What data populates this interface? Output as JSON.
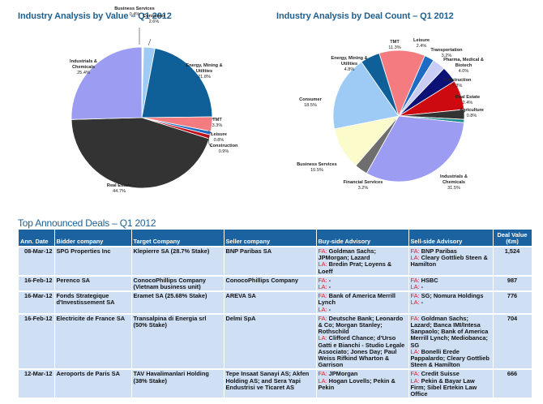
{
  "titles": {
    "value_chart": "Industry Analysis by Value – Q1 2012",
    "count_chart": "Industry Analysis by Deal Count – Q1 2012",
    "deals_table": "Top Announced Deals – Q1 2012"
  },
  "chart_data": [
    {
      "type": "pie",
      "title": "Industry Analysis by Value – Q1 2012",
      "slices": [
        {
          "label": "Business Services",
          "value": 0.4,
          "display": "0.4%",
          "color": "#ffffff"
        },
        {
          "label": "Consumer",
          "value": 2.6,
          "display": "2.6%",
          "color": "#9dcbf5"
        },
        {
          "label": "Energy, Mining & Utilities",
          "value": 21.8,
          "display": "21.8%",
          "color": "#0f5f99"
        },
        {
          "label": "TMT",
          "value": 3.3,
          "display": "3.3%",
          "color": "#f47c80"
        },
        {
          "label": "Leisure",
          "value": 0.8,
          "display": "0.8%",
          "color": "#1e6bc6"
        },
        {
          "label": "Construction",
          "value": 0.9,
          "display": "0.9%",
          "color": "#c0101a"
        },
        {
          "label": "Real Estate",
          "value": 44.7,
          "display": "44.7%",
          "color": "#333333"
        },
        {
          "label": "Industrials & Chemicals",
          "value": 25.4,
          "display": "25.4%",
          "color": "#9b9cf2"
        }
      ]
    },
    {
      "type": "pie",
      "title": "Industry Analysis by Deal Count – Q1 2012",
      "slices": [
        {
          "label": "Leisure",
          "value": 2.4,
          "display": "2.4%",
          "color": "#1e6bc6"
        },
        {
          "label": "Transportation",
          "value": 3.2,
          "display": "3.2%",
          "color": "#c9ccf4"
        },
        {
          "label": "Pharma, Medical & Biotech",
          "value": 4.0,
          "display": "4.0%",
          "color": "#0b1175"
        },
        {
          "label": "Construction",
          "value": 7.3,
          "display": "7.3%",
          "color": "#cc0a0f"
        },
        {
          "label": "Real Estate",
          "value": 2.4,
          "display": "2.4%",
          "color": "#333333"
        },
        {
          "label": "Agriculture",
          "value": 0.8,
          "display": "0.8%",
          "color": "#1a8a8a"
        },
        {
          "label": "Industrials & Chemicals",
          "value": 31.5,
          "display": "31.5%",
          "color": "#9b9cf2"
        },
        {
          "label": "Financial Services",
          "value": 3.2,
          "display": "3.2%",
          "color": "#6e6e6e"
        },
        {
          "label": "Business Services",
          "value": 10.5,
          "display": "10.5%",
          "color": "#fbfbcc"
        },
        {
          "label": "Consumer",
          "value": 18.5,
          "display": "18.5%",
          "color": "#9dcbf5"
        },
        {
          "label": "Energy, Mining & Utilities",
          "value": 4.8,
          "display": "4.8%",
          "color": "#0f5f99"
        },
        {
          "label": "TMT",
          "value": 11.3,
          "display": "11.3%",
          "color": "#f47c80"
        }
      ]
    }
  ],
  "table": {
    "headers": {
      "date": "Ann. Date",
      "bidder": "Bidder company",
      "target": "Target Company",
      "seller": "Seller company",
      "buy": "Buy-side Advisory",
      "sell": "Sell-side Advisory",
      "value": "Deal Value (€m)"
    },
    "fa_prefix": "FA:",
    "la_prefix": "LA:",
    "rows": [
      {
        "date": "08-Mar-12",
        "bidder": "SPG Properties Inc",
        "target": "Klepierre SA (28.7% Stake)",
        "seller": "BNP Paribas SA",
        "buy_fa": " Goldman Sachs; JPMorgan; Lazard",
        "buy_la": " Bredin Prat; Loyens & Loeff",
        "sell_fa": " BNP Paribas",
        "sell_la": " Cleary Gottlieb Steen & Hamilton",
        "value": "1,524"
      },
      {
        "date": "16-Feb-12",
        "bidder": "Perenco SA",
        "target": "ConocoPhillips Company (Vietnam business unit)",
        "seller": "ConocoPhillips Company",
        "buy_fa": " -",
        "buy_la": " -",
        "sell_fa": " HSBC",
        "sell_la": " -",
        "value": "987"
      },
      {
        "date": "16-Mar-12",
        "bidder": "Fonds Strategique d'Investissement SA",
        "target": "Eramet SA (25.68% Stake)",
        "seller": "AREVA SA",
        "buy_fa": " Bank of America Merrill Lynch",
        "buy_la": " -",
        "sell_fa": " SG; Nomura Holdings",
        "sell_la": " -",
        "value": "776"
      },
      {
        "date": "16-Feb-12",
        "bidder": "Electricite de France SA",
        "target": "Transalpina di Energia srl (50% Stake)",
        "seller": "Delmi SpA",
        "buy_fa": " Deutsche Bank; Leonardo & Co; Morgan Stanley; Rothschild",
        "buy_la": " Clifford Chance; d'Urso Gatti e Bianchi - Studio Legale Associato; Jones Day; Paul Weiss Rifkind Wharton & Garrison",
        "sell_fa": " Goldman Sachs; Lazard; Banca IMI/Intesa Sanpaolo; Bank of America Merrill Lynch; Mediobanca; SG",
        "sell_la": " Bonelli Erede Pappalardo; Cleary Gottlieb Steen & Hamilton",
        "value": "704"
      },
      {
        "date": "12-Mar-12",
        "bidder": "Aeroports de Paris SA",
        "target": "TAV Havalimanlari Holding (38% Stake)",
        "seller": "Tepe Insaat Sanayi AS; Akfen Holding AS; and Sera Yapi Endustrisi ve Ticaret AS",
        "buy_fa": " JPMorgan",
        "buy_la": " Hogan Lovells; Pekin & Pekin",
        "sell_fa": " Credit Suisse",
        "sell_la": " Pekin & Bayar Law Firm; Sibel Ertekin Law Office",
        "value": "666"
      }
    ]
  }
}
